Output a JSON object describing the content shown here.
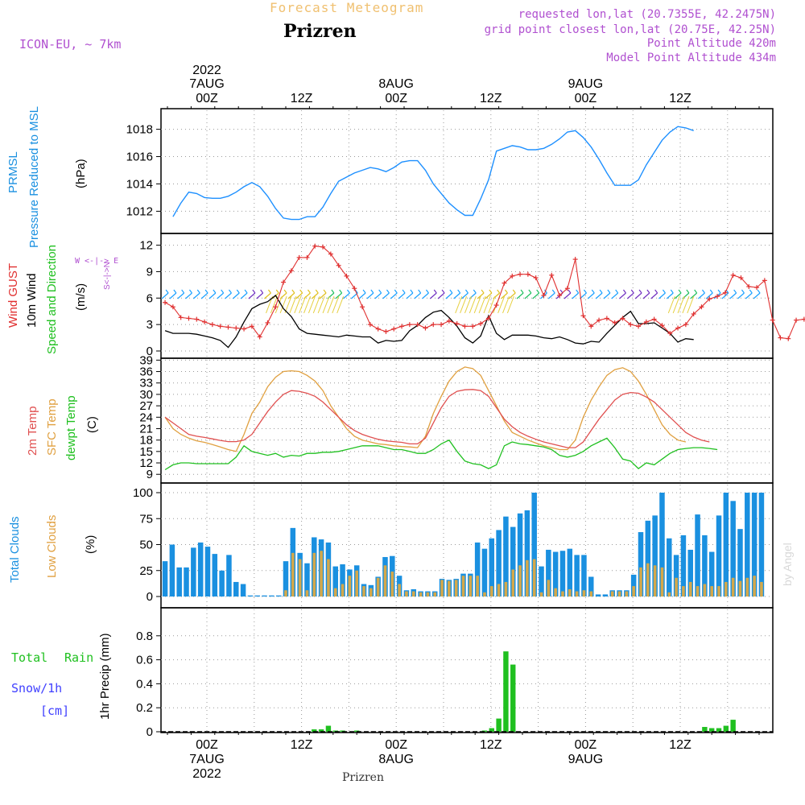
{
  "header": {
    "title": "Forecast Meteogram",
    "location": "Prizren",
    "model": "ICON-EU, ~ 7km",
    "requested": "requested lon,lat (20.7355E, 42.2475N)",
    "gridpoint": "grid point closest lon,lat (20.75E, 42.25N)",
    "point_altitude": "Point Altitude 420m",
    "model_altitude": "Model Point Altitude 434m",
    "footer_location": "Prizren",
    "watermark": "by Angel"
  },
  "axis_time": {
    "top_labels": [
      {
        "l1": "2022",
        "l2": "7AUG",
        "l3": "00Z",
        "hour": 0
      },
      {
        "l1": "",
        "l2": "",
        "l3": "12Z",
        "hour": 12
      },
      {
        "l1": "",
        "l2": "8AUG",
        "l3": "00Z",
        "hour": 24
      },
      {
        "l1": "",
        "l2": "",
        "l3": "12Z",
        "hour": 36
      },
      {
        "l1": "",
        "l2": "9AUG",
        "l3": "00Z",
        "hour": 48
      },
      {
        "l1": "",
        "l2": "",
        "l3": "12Z",
        "hour": 60
      }
    ],
    "bottom_labels": [
      {
        "l1": "00Z",
        "l2": "7AUG",
        "l3": "2022",
        "hour": 0
      },
      {
        "l1": "12Z",
        "l2": "",
        "l3": "",
        "hour": 12
      },
      {
        "l1": "00Z",
        "l2": "8AUG",
        "l3": "",
        "hour": 24
      },
      {
        "l1": "12Z",
        "l2": "",
        "l3": "",
        "hour": 36
      },
      {
        "l1": "00Z",
        "l2": "9AUG",
        "l3": "",
        "hour": 48
      },
      {
        "l1": "12Z",
        "l2": "",
        "l3": "",
        "hour": 60
      }
    ]
  },
  "colors": {
    "pressure": "#1e90ff",
    "gust": "#e03030",
    "wind": "#000000",
    "temp": "#e05050",
    "sfc": "#e0a040",
    "dew": "#20c020",
    "total_clouds": "#1a90e0",
    "low_clouds": "#d4a84a",
    "rain": "#20c020",
    "purple": "#b050d0",
    "snow": "#4040ff"
  },
  "panel_labels": {
    "pressure": {
      "l1": "PRMSL",
      "l2": "Pressure Reduced to MSL",
      "unit": "(hPa)"
    },
    "wind": {
      "l1": "Wind GUST",
      "l2": "10m Wind",
      "l3": "Speed and Direction",
      "unit": "(m/s)",
      "compass_n": "N",
      "compass_s": "S",
      "compass_we": "W <-|-> E",
      "compass_ns": "S<-|->N"
    },
    "temp": {
      "l1": "2m Temp",
      "l2": "SFC Temp",
      "l3": "dewpt Temp",
      "unit": "(C)"
    },
    "clouds": {
      "l1": "Total Clouds",
      "l2": "Low Clouds",
      "unit": "(%)"
    },
    "precip": {
      "l1": "Total",
      "l1b": "Rain",
      "l2": "Snow/1h",
      "l3": "[cm]",
      "unit": "1hr Precip (mm)"
    }
  },
  "chart_data": [
    {
      "type": "line",
      "title": "PRMSL Pressure Reduced to MSL",
      "ylabel": "(hPa)",
      "x_hours": [
        -4,
        -3,
        -2,
        -1,
        0,
        1,
        2,
        3,
        4,
        5,
        6,
        7,
        8,
        9,
        10,
        11,
        12,
        13,
        14,
        15,
        16,
        17,
        18,
        19,
        20,
        21,
        22,
        23,
        24,
        25,
        26,
        27,
        28,
        29,
        30,
        31,
        32,
        33,
        34,
        35,
        36,
        37,
        38,
        39,
        40,
        41,
        42,
        43,
        44,
        45,
        46,
        47,
        48,
        49,
        50,
        51,
        52,
        53,
        54,
        55,
        56,
        57,
        58,
        59,
        60,
        61,
        62,
        63,
        64,
        65,
        66,
        67,
        68,
        69,
        70,
        71,
        72,
        73,
        74,
        75
      ],
      "ylim": [
        1011.2,
        1018.8
      ],
      "yticks": [
        1012,
        1014,
        1016,
        1018
      ],
      "series": [
        {
          "name": "PRMSL",
          "values": [
            1011.6,
            1012.6,
            1013.4,
            1013.3,
            1013.0,
            1012.95,
            1012.95,
            1013.1,
            1013.4,
            1013.8,
            1014.1,
            1013.8,
            1013.1,
            1012.2,
            1011.5,
            1011.4,
            1011.4,
            1011.6,
            1011.6,
            1012.3,
            1013.3,
            1014.2,
            1014.5,
            1014.8,
            1015.0,
            1015.2,
            1015.1,
            1014.9,
            1015.2,
            1015.6,
            1015.7,
            1015.7,
            1015.0,
            1014.0,
            1013.3,
            1012.6,
            1012.1,
            1011.7,
            1011.7,
            1012.9,
            1014.3,
            1016.4,
            1016.6,
            1016.8,
            1016.7,
            1016.5,
            1016.5,
            1016.6,
            1016.9,
            1017.3,
            1017.8,
            1017.9,
            1017.4,
            1016.7,
            1015.8,
            1014.8,
            1013.9,
            1013.9,
            1013.9,
            1014.3,
            1015.4,
            1016.3,
            1017.2,
            1017.8,
            1018.2,
            1018.1,
            1017.9
          ]
        }
      ],
      "grid": true
    },
    {
      "type": "line",
      "title": "Wind GUST / 10m Wind Speed and Direction",
      "ylabel": "(m/s)",
      "ylim": [
        0,
        12.6
      ],
      "yticks": [
        0,
        3,
        6,
        9,
        12
      ],
      "series": [
        {
          "name": "Wind GUST",
          "values": [
            5.5,
            5.0,
            3.8,
            3.7,
            3.6,
            3.3,
            3.0,
            2.8,
            2.7,
            2.6,
            2.5,
            2.8,
            1.6,
            3.2,
            5.0,
            7.8,
            9.1,
            10.6,
            10.6,
            11.9,
            11.8,
            11.0,
            9.7,
            8.5,
            7.1,
            5.0,
            3.0,
            2.5,
            2.2,
            2.5,
            2.8,
            3.0,
            3.0,
            2.6,
            3.0,
            3.0,
            3.4,
            3.1,
            2.8,
            2.8,
            3.1,
            3.7,
            5.2,
            7.7,
            8.5,
            8.7,
            8.7,
            8.3,
            6.3,
            8.6,
            6.3,
            7.1,
            10.4,
            4.0,
            2.8,
            3.5,
            3.7,
            3.2,
            3.7,
            3.0,
            2.8,
            3.3,
            3.6,
            2.9,
            2.0,
            2.6,
            3.0,
            4.2,
            5.0,
            5.9,
            6.2,
            6.6,
            8.6,
            8.3,
            7.3,
            7.2,
            8.0,
            3.5,
            1.5,
            1.4,
            3.5,
            3.6
          ]
        },
        {
          "name": "10m Wind",
          "values": [
            2.3,
            2.0,
            2.0,
            2.0,
            1.9,
            1.7,
            1.5,
            1.2,
            0.4,
            1.6,
            3.3,
            4.8,
            5.3,
            5.6,
            6.3,
            4.8,
            3.9,
            2.5,
            2.0,
            1.9,
            1.8,
            1.7,
            1.6,
            1.8,
            1.7,
            1.6,
            1.6,
            0.9,
            1.2,
            1.1,
            1.2,
            2.3,
            2.9,
            3.8,
            4.4,
            4.6,
            3.8,
            2.8,
            1.5,
            0.9,
            1.7,
            4.0,
            2.0,
            1.3,
            1.8,
            1.8,
            1.8,
            1.7,
            1.5,
            1.4,
            1.6,
            1.3,
            0.9,
            0.8,
            1.1,
            1.0,
            2.0,
            2.9,
            3.8,
            4.5,
            3.1,
            3.1,
            3.2,
            2.6,
            2.0,
            1.0,
            1.4,
            1.3
          ]
        }
      ],
      "grid": true
    },
    {
      "type": "line",
      "title": "2m Temp / SFC Temp / dewpt Temp",
      "ylabel": "(C)",
      "ylim": [
        8.2,
        39.5
      ],
      "yticks": [
        9,
        12,
        15,
        18,
        21,
        24,
        27,
        30,
        33,
        36,
        39
      ],
      "series": [
        {
          "name": "2m Temp",
          "values": [
            24.0,
            22.5,
            21.0,
            19.5,
            19.0,
            18.7,
            18.3,
            17.9,
            17.6,
            17.6,
            18.0,
            19.5,
            22.5,
            25.5,
            28.0,
            30.0,
            31.0,
            30.8,
            30.3,
            29.5,
            28.0,
            26.0,
            24.0,
            22.0,
            20.5,
            19.5,
            18.8,
            18.2,
            17.8,
            17.6,
            17.4,
            17.0,
            17.0,
            18.5,
            22.5,
            26.5,
            29.5,
            30.8,
            31.2,
            31.3,
            31.0,
            29.5,
            26.5,
            23.5,
            21.5,
            20.0,
            19.0,
            18.2,
            17.5,
            17.0,
            16.5,
            16.0,
            16.0,
            17.5,
            20.5,
            23.5,
            26.0,
            28.5,
            30.0,
            30.5,
            30.3,
            29.3,
            28.0,
            26.0,
            24.0,
            22.0,
            20.0,
            18.8,
            18.0,
            17.5
          ]
        },
        {
          "name": "SFC Temp",
          "values": [
            24.0,
            21.0,
            19.5,
            18.5,
            17.8,
            17.4,
            16.8,
            16.2,
            15.5,
            15.0,
            19.5,
            25.0,
            28.0,
            32.0,
            34.5,
            36.0,
            36.2,
            36.0,
            35.0,
            33.5,
            31.0,
            27.0,
            24.0,
            21.0,
            19.0,
            18.0,
            17.5,
            17.0,
            16.8,
            16.5,
            16.3,
            16.2,
            16.0,
            19.0,
            25.0,
            29.5,
            33.5,
            36.0,
            37.2,
            36.8,
            35.0,
            31.0,
            27.0,
            23.0,
            20.0,
            19.0,
            18.0,
            17.2,
            16.5,
            16.0,
            15.5,
            15.5,
            18.0,
            24.0,
            28.5,
            32.0,
            35.0,
            36.5,
            37.0,
            36.0,
            33.5,
            30.0,
            26.0,
            22.0,
            19.5,
            18.0,
            17.5
          ]
        },
        {
          "name": "dewpt Temp",
          "values": [
            10.2,
            11.5,
            12.0,
            12.0,
            11.8,
            11.8,
            11.8,
            11.8,
            11.8,
            13.5,
            16.5,
            15.0,
            14.5,
            14.0,
            14.5,
            13.5,
            14.0,
            13.8,
            14.5,
            14.5,
            14.8,
            14.8,
            15.0,
            15.5,
            16.0,
            16.5,
            16.5,
            16.5,
            16.0,
            15.5,
            15.5,
            15.0,
            14.5,
            14.5,
            15.5,
            17.0,
            18.0,
            15.0,
            12.5,
            11.8,
            11.5,
            10.5,
            11.5,
            16.5,
            17.5,
            17.0,
            16.8,
            16.5,
            16.2,
            15.5,
            14.0,
            13.5,
            14.0,
            15.0,
            16.5,
            17.5,
            18.5,
            16.0,
            13.0,
            12.5,
            10.5,
            12.0,
            11.5,
            13.0,
            14.5,
            15.5,
            15.8,
            16.0,
            16.0,
            15.8,
            15.5
          ]
        }
      ],
      "grid": true
    },
    {
      "type": "bar",
      "title": "Total Clouds / Low Clouds",
      "ylabel": "(%)",
      "ylim": [
        0,
        100
      ],
      "yticks": [
        0,
        25,
        50,
        75,
        100
      ],
      "series": [
        {
          "name": "Total Clouds",
          "values": [
            34,
            50,
            28,
            28,
            47,
            52,
            48,
            41,
            25,
            40,
            14,
            12,
            1,
            1,
            1,
            1,
            1,
            34,
            66,
            42,
            32,
            57,
            55,
            52,
            29,
            31,
            26,
            30,
            12,
            11,
            19,
            38,
            39,
            20,
            6,
            7,
            5,
            5,
            5,
            17,
            16,
            17,
            22,
            22,
            52,
            46,
            56,
            64,
            77,
            67,
            80,
            83,
            100,
            29,
            45,
            43,
            44,
            46,
            40,
            40,
            19,
            2,
            2,
            6,
            6,
            6,
            21,
            62,
            73,
            78,
            100,
            56,
            40,
            59,
            45,
            79,
            59,
            43,
            78,
            100,
            92,
            65,
            100,
            100,
            100
          ]
        },
        {
          "name": "Low Clouds",
          "values": [
            0,
            0,
            0,
            0,
            0,
            0,
            0,
            0,
            0,
            0,
            0,
            0,
            0,
            0,
            0,
            0,
            0,
            6,
            42,
            36,
            6,
            42,
            44,
            36,
            8,
            12,
            20,
            25,
            10,
            8,
            18,
            30,
            24,
            12,
            5,
            5,
            4,
            4,
            4,
            16,
            15,
            16,
            20,
            20,
            20,
            4,
            10,
            12,
            14,
            26,
            30,
            35,
            36,
            4,
            16,
            8,
            5,
            7,
            5,
            6,
            5,
            0,
            0,
            5,
            5,
            5,
            10,
            28,
            32,
            30,
            28,
            4,
            18,
            10,
            14,
            10,
            12,
            10,
            10,
            14,
            18,
            15,
            18,
            20,
            14
          ]
        }
      ],
      "grid": true
    },
    {
      "type": "bar",
      "title": "1hr Precip",
      "ylabel": "1hr Precip (mm)",
      "ylim": [
        0,
        1.0
      ],
      "yticks": [
        0,
        0.2,
        0.4,
        0.6,
        0.8
      ],
      "series": [
        {
          "name": "Total Rain",
          "values": [
            0,
            0,
            0,
            0,
            0,
            0,
            0,
            0,
            0,
            0,
            0,
            0,
            0,
            0,
            0,
            0,
            0,
            0,
            0,
            0,
            0,
            0.02,
            0.02,
            0.05,
            0.01,
            0.01,
            0,
            0.01,
            0,
            0,
            0,
            0,
            0,
            0,
            0,
            0,
            0,
            0,
            0,
            0,
            0,
            0,
            0,
            0,
            0,
            0.01,
            0.03,
            0.11,
            0.67,
            0.56,
            0,
            0,
            0,
            0,
            0,
            0,
            0,
            0,
            0,
            0,
            0,
            0,
            0,
            0,
            0,
            0,
            0,
            0,
            0,
            0,
            0,
            0,
            0,
            0,
            0,
            0,
            0.04,
            0.03,
            0.03,
            0.05,
            0.1,
            0,
            0,
            0,
            0
          ]
        },
        {
          "name": "Snow/1h",
          "values": []
        }
      ],
      "grid": true
    }
  ]
}
